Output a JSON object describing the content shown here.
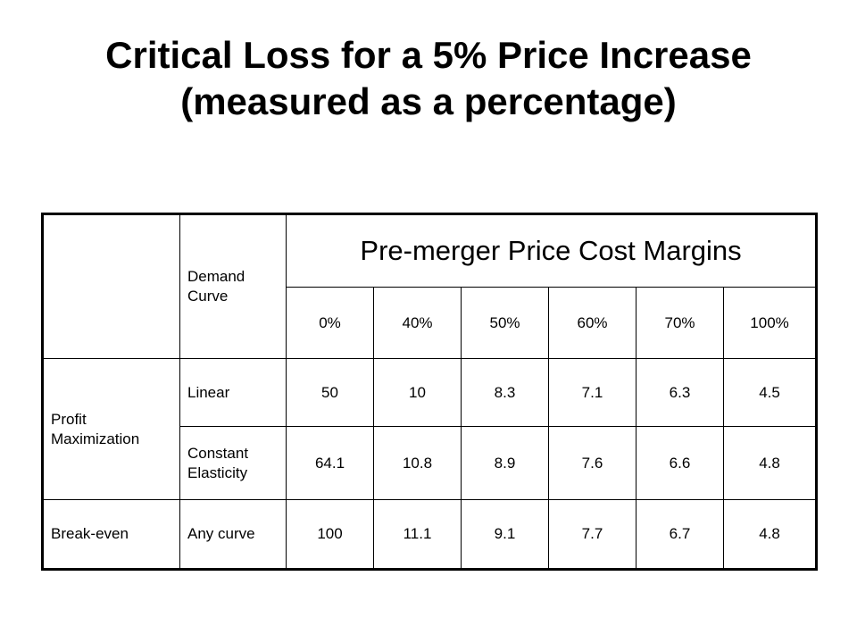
{
  "title": {
    "line1": "Critical Loss for a 5% Price Increase",
    "line2": "(measured as a percentage)"
  },
  "table": {
    "demand_curve_header": "Demand Curve",
    "margins_header": "Pre-merger Price Cost Margins",
    "margins": [
      "0%",
      "40%",
      "50%",
      "60%",
      "70%",
      "100%"
    ],
    "groups": [
      {
        "label": "Profit Maximization",
        "rows": [
          {
            "curve": "Linear",
            "values": [
              "50",
              "10",
              "8.3",
              "7.1",
              "6.3",
              "4.5"
            ]
          },
          {
            "curve": "Constant Elasticity",
            "values": [
              "64.1",
              "10.8",
              "8.9",
              "7.6",
              "6.6",
              "4.8"
            ]
          }
        ]
      },
      {
        "label": "Break-even",
        "rows": [
          {
            "curve": "Any curve",
            "values": [
              "100",
              "11.1",
              "9.1",
              "7.7",
              "6.7",
              "4.8"
            ]
          }
        ]
      }
    ]
  }
}
